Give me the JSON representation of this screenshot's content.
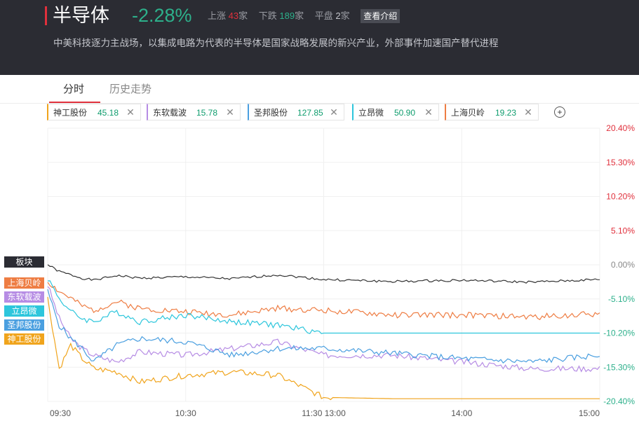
{
  "header": {
    "title": "半导体",
    "change": "-2.28%",
    "change_color": "#2db08b",
    "up_label": "上涨",
    "up_count": "43",
    "up_unit": "家",
    "down_label": "下跌",
    "down_count": "189",
    "down_unit": "家",
    "flat_label": "平盘",
    "flat_count": "2",
    "flat_unit": "家",
    "intro_button": "查看介绍",
    "description": "中美科技逐力主战场，以集成电路为代表的半导体是国家战略发展的新兴产业，外部事件加速国产替代进程"
  },
  "tabs": [
    {
      "label": "分时",
      "active": true
    },
    {
      "label": "历史走势",
      "active": false
    }
  ],
  "stocks": [
    {
      "name": "神工股份",
      "value": "45.18",
      "color": "#f0a41c"
    },
    {
      "name": "东软载波",
      "value": "15.78",
      "color": "#b68ce4"
    },
    {
      "name": "圣邦股份",
      "value": "127.85",
      "color": "#4a9fe0"
    },
    {
      "name": "立昂微",
      "value": "50.90",
      "color": "#2dc6dc"
    },
    {
      "name": "上海贝岭",
      "value": "19.23",
      "color": "#ee7d43"
    }
  ],
  "add_icon": "plus-circle-icon",
  "close_icon": "close-icon",
  "chart_data": {
    "type": "line",
    "y_ticks": [
      "20.40%",
      "15.30%",
      "10.20%",
      "5.10%",
      "0.00%",
      "-5.10%",
      "-10.20%",
      "-15.30%",
      "-20.40%"
    ],
    "ylim": [
      -20.4,
      20.4
    ],
    "x_ticks": [
      "09:30",
      "10:30",
      "11:30 13:00",
      "14:00",
      "15:00"
    ],
    "tags": [
      {
        "label": "板块",
        "color": "#2b2c33"
      },
      {
        "label": "上海贝岭",
        "color": "#ee7d43"
      },
      {
        "label": "东软载波",
        "color": "#b68ce4"
      },
      {
        "label": "立昂微",
        "color": "#2dc6dc"
      },
      {
        "label": "圣邦股份",
        "color": "#4a9fe0"
      },
      {
        "label": "神工股份",
        "color": "#f0a41c"
      }
    ],
    "x": [
      0,
      5,
      10,
      15,
      20,
      30,
      40,
      60,
      80,
      100,
      120,
      150,
      180,
      210,
      240
    ],
    "series": [
      {
        "name": "板块",
        "color": "#333333",
        "values": [
          0.0,
          -1.0,
          -1.5,
          -2.0,
          -2.3,
          -1.6,
          -2.0,
          -1.8,
          -2.1,
          -1.5,
          -2.2,
          -2.5,
          -2.3,
          -2.6,
          -2.2
        ]
      },
      {
        "name": "上海贝岭",
        "color": "#ee7d43",
        "values": [
          -2.5,
          -4.0,
          -5.0,
          -6.2,
          -6.8,
          -5.5,
          -6.5,
          -7.0,
          -7.5,
          -6.5,
          -6.8,
          -7.5,
          -7.5,
          -7.8,
          -7.3
        ]
      },
      {
        "name": "东软载波",
        "color": "#b68ce4",
        "values": [
          -3.0,
          -8.0,
          -11.0,
          -12.5,
          -13.5,
          -14.5,
          -13.0,
          -13.5,
          -12.5,
          -11.5,
          -13.5,
          -13.5,
          -14.5,
          -15.5,
          -15.5
        ]
      },
      {
        "name": "立昂微",
        "color": "#2dc6dc",
        "values": [
          -2.0,
          -5.0,
          -7.0,
          -8.0,
          -8.5,
          -7.0,
          -8.5,
          -7.5,
          -8.5,
          -9.0,
          -10.2,
          -10.2,
          -10.2,
          -10.2,
          -10.2
        ]
      },
      {
        "name": "圣邦股份",
        "color": "#4a9fe0",
        "values": [
          -4.0,
          -9.0,
          -11.0,
          -12.5,
          -14.5,
          -12.0,
          -11.0,
          -11.5,
          -13.5,
          -12.5,
          -12.5,
          -13.2,
          -14.0,
          -14.5,
          -13.5
        ]
      },
      {
        "name": "神工股份",
        "color": "#f0a41c",
        "values": [
          -5.0,
          -15.5,
          -12.0,
          -14.0,
          -15.5,
          -16.0,
          -17.5,
          -16.5,
          -16.0,
          -16.5,
          -19.8,
          -20.0,
          -20.0,
          -20.0,
          -20.0
        ]
      }
    ]
  }
}
